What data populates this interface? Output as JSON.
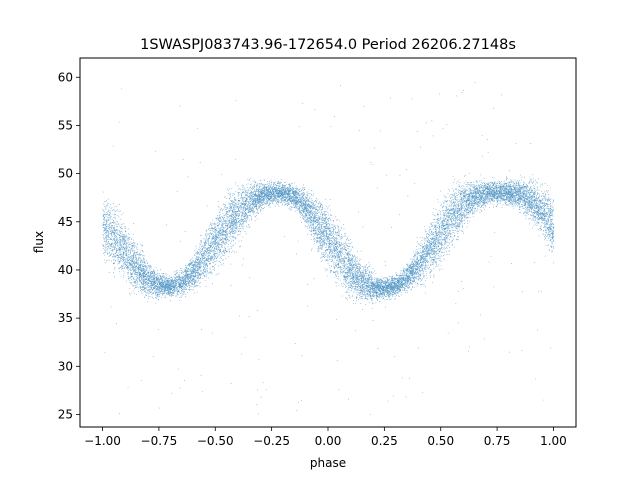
{
  "chart_data": {
    "type": "scatter",
    "title": "1SWASPJ083743.96-172654.0 Period 26206.27148s",
    "xlabel": "phase",
    "ylabel": "flux",
    "xlim": [
      -1.1,
      1.1
    ],
    "ylim": [
      23.7,
      62.0
    ],
    "x_ticks": [
      -1.0,
      -0.75,
      -0.5,
      -0.25,
      0.0,
      0.25,
      0.5,
      0.75,
      1.0
    ],
    "x_tick_labels": [
      "−1.00",
      "−0.75",
      "−0.50",
      "−0.25",
      "0.00",
      "0.25",
      "0.50",
      "0.75",
      "1.00"
    ],
    "y_ticks": [
      25,
      30,
      35,
      40,
      45,
      50,
      55,
      60
    ],
    "y_tick_labels": [
      "25",
      "30",
      "35",
      "40",
      "45",
      "50",
      "55",
      "60"
    ],
    "grid": false,
    "point_color": "#1f77b4",
    "series": [
      {
        "phase": [
          -1.0,
          -0.95,
          -0.9,
          -0.85,
          -0.8,
          -0.75,
          -0.7,
          -0.65,
          -0.6,
          -0.55,
          -0.5,
          -0.45,
          -0.4,
          -0.35,
          -0.3,
          -0.25,
          -0.2,
          -0.15,
          -0.1,
          -0.05,
          0.0,
          0.05,
          0.1,
          0.15,
          0.2,
          0.25,
          0.3,
          0.35,
          0.4,
          0.45,
          0.5,
          0.55,
          0.6,
          0.65,
          0.7,
          0.75,
          0.8,
          0.85,
          0.9,
          0.95,
          1.0
        ],
        "flux": [
          44.5,
          43.4,
          42.0,
          40.3,
          39.0,
          38.5,
          38.3,
          38.7,
          39.8,
          41.3,
          42.9,
          44.5,
          45.9,
          47.0,
          47.7,
          48.0,
          48.0,
          47.6,
          46.5,
          44.9,
          43.2,
          41.6,
          40.0,
          38.8,
          38.2,
          38.1,
          38.4,
          39.2,
          40.6,
          42.2,
          43.9,
          45.5,
          46.8,
          47.6,
          48.0,
          48.1,
          48.0,
          47.8,
          47.2,
          46.2,
          44.6
        ],
        "band_halfwidth": [
          3.2,
          3.0,
          2.7,
          2.3,
          1.7,
          1.2,
          1.0,
          1.2,
          1.6,
          2.3,
          2.8,
          2.9,
          2.6,
          2.0,
          1.3,
          1.0,
          1.0,
          1.2,
          1.8,
          2.6,
          3.0,
          3.0,
          2.6,
          2.0,
          1.3,
          1.0,
          1.0,
          1.3,
          2.0,
          2.6,
          3.0,
          2.8,
          2.3,
          1.6,
          1.2,
          1.0,
          1.2,
          1.5,
          1.9,
          2.4,
          3.1
        ],
        "point_count": 16000,
        "outlier_range": [
          25.0,
          60.0
        ]
      }
    ]
  }
}
